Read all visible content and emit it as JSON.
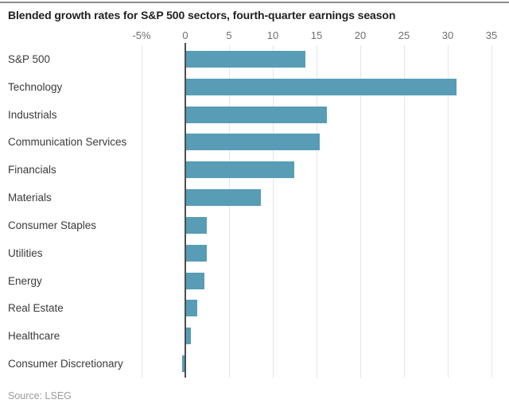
{
  "chart": {
    "title": "Blended growth rates for S&P 500 sectors, fourth-quarter earnings season",
    "source": "Source: LSEG"
  },
  "chart_data": {
    "type": "bar",
    "orientation": "horizontal",
    "title": "Blended growth rates for S&P 500 sectors, fourth-quarter earnings season",
    "categories": [
      "S&P 500",
      "Technology",
      "Industrials",
      "Communication Services",
      "Financials",
      "Materials",
      "Consumer Staples",
      "Utilities",
      "Energy",
      "Real Estate",
      "Healthcare",
      "Consumer Discretionary"
    ],
    "values": [
      13.6,
      30.9,
      16.1,
      15.3,
      12.4,
      8.5,
      2.4,
      2.4,
      2.1,
      1.3,
      0.5,
      -0.3
    ],
    "unit": "%",
    "xlabel": "",
    "ylabel": "",
    "xlim": [
      -5,
      35
    ],
    "x_ticks": [
      -5,
      0,
      5,
      10,
      15,
      20,
      25,
      30,
      35
    ],
    "x_tick_labels": [
      "-5%",
      "0",
      "5",
      "10",
      "15",
      "20",
      "25",
      "30",
      "35"
    ],
    "grid": true,
    "legend": false,
    "source": "Source: LSEG",
    "colors": {
      "bar": "#589cb5",
      "gridline": "#e6e6e6",
      "zero_line": "#4d4d4d",
      "title_text": "#1f1f1f",
      "category_text": "#3b3b3b",
      "tick_text": "#6f6f6f",
      "source_text": "#9b9b9b"
    }
  }
}
